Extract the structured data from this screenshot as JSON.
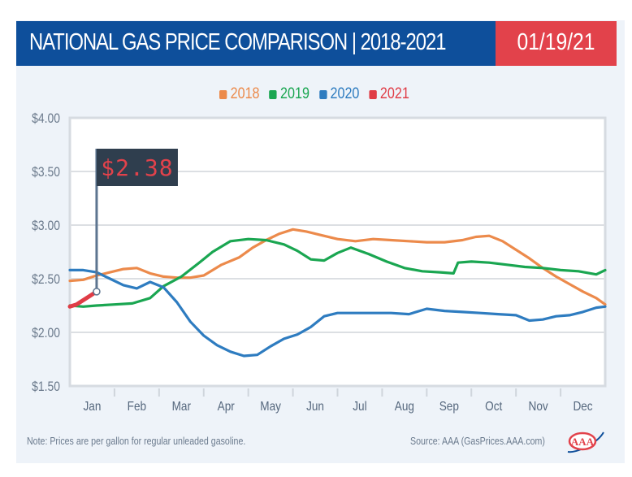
{
  "header": {
    "title": "NATIONAL GAS PRICE COMPARISON | 2018-2021",
    "date": "01/19/21"
  },
  "colors": {
    "header_blue": "#0e4f9b",
    "header_red": "#e2424b",
    "2018": "#ec8a4b",
    "2019": "#1aa651",
    "2020": "#2e7cc0",
    "2021": "#e03c46",
    "callout_bg": "#2f3e4e",
    "callout_text": "#e2424b"
  },
  "footer": {
    "note": "Note: Prices are per gallon for regular unleaded gasoline.",
    "source": "Source: AAA (GasPrices.AAA.com)",
    "logo": "AAA"
  },
  "chart_data": {
    "type": "line",
    "title": "NATIONAL GAS PRICE COMPARISON | 2018-2021",
    "xlabel": "",
    "ylabel": "",
    "x_unit": "month (0 = start of Jan, 12 = end of Dec)",
    "categories": [
      "Jan",
      "Feb",
      "Mar",
      "Apr",
      "May",
      "Jun",
      "Jul",
      "Aug",
      "Sep",
      "Oct",
      "Nov",
      "Dec"
    ],
    "y_ticks": [
      "$4.00",
      "$3.50",
      "$3.00",
      "$2.50",
      "$2.00",
      "$1.50"
    ],
    "y_tick_values": [
      4.0,
      3.5,
      3.0,
      2.5,
      2.0,
      1.5
    ],
    "ylim": [
      1.5,
      4.0
    ],
    "xlim": [
      0,
      12
    ],
    "grid": true,
    "legend": "top-center",
    "callout": {
      "label": "$2.38",
      "x": 0.6,
      "y": 2.38,
      "series": "2021"
    },
    "series": [
      {
        "name": "2018",
        "x": [
          0,
          0.3,
          0.6,
          0.9,
          1.2,
          1.5,
          1.8,
          2.1,
          2.4,
          2.7,
          3.0,
          3.4,
          3.8,
          4.1,
          4.4,
          4.7,
          5.0,
          5.3,
          5.6,
          6.0,
          6.4,
          6.8,
          7.2,
          7.6,
          8.0,
          8.4,
          8.8,
          9.1,
          9.4,
          9.7,
          10.0,
          10.3,
          10.6,
          10.9,
          11.2,
          11.5,
          11.8,
          12.0
        ],
        "y": [
          2.48,
          2.49,
          2.53,
          2.56,
          2.59,
          2.6,
          2.55,
          2.52,
          2.51,
          2.51,
          2.53,
          2.63,
          2.7,
          2.79,
          2.86,
          2.92,
          2.96,
          2.94,
          2.91,
          2.87,
          2.85,
          2.87,
          2.86,
          2.85,
          2.84,
          2.84,
          2.86,
          2.89,
          2.9,
          2.85,
          2.77,
          2.69,
          2.6,
          2.52,
          2.45,
          2.38,
          2.32,
          2.26
        ]
      },
      {
        "name": "2019",
        "x": [
          0,
          0.3,
          0.6,
          1.0,
          1.4,
          1.8,
          2.1,
          2.5,
          2.9,
          3.2,
          3.6,
          4.0,
          4.4,
          4.8,
          5.1,
          5.4,
          5.7,
          6.0,
          6.3,
          6.7,
          7.1,
          7.5,
          7.9,
          8.3,
          8.6,
          8.7,
          9.0,
          9.4,
          9.8,
          10.2,
          10.6,
          11.0,
          11.4,
          11.8,
          12.0
        ],
        "y": [
          2.25,
          2.24,
          2.25,
          2.26,
          2.27,
          2.32,
          2.43,
          2.52,
          2.65,
          2.75,
          2.85,
          2.87,
          2.86,
          2.82,
          2.76,
          2.68,
          2.67,
          2.74,
          2.79,
          2.73,
          2.66,
          2.6,
          2.57,
          2.56,
          2.55,
          2.65,
          2.66,
          2.65,
          2.63,
          2.61,
          2.6,
          2.58,
          2.57,
          2.54,
          2.58
        ]
      },
      {
        "name": "2020",
        "x": [
          0,
          0.3,
          0.6,
          0.9,
          1.2,
          1.5,
          1.8,
          2.1,
          2.4,
          2.7,
          3.0,
          3.3,
          3.6,
          3.9,
          4.2,
          4.5,
          4.8,
          5.1,
          5.4,
          5.7,
          6.0,
          6.4,
          6.8,
          7.2,
          7.6,
          8.0,
          8.4,
          8.8,
          9.2,
          9.6,
          10.0,
          10.3,
          10.6,
          10.9,
          11.2,
          11.5,
          11.8,
          12.0
        ],
        "y": [
          2.58,
          2.58,
          2.56,
          2.5,
          2.44,
          2.41,
          2.47,
          2.42,
          2.28,
          2.1,
          1.97,
          1.88,
          1.82,
          1.78,
          1.79,
          1.87,
          1.94,
          1.98,
          2.05,
          2.15,
          2.18,
          2.18,
          2.18,
          2.18,
          2.17,
          2.22,
          2.2,
          2.19,
          2.18,
          2.17,
          2.16,
          2.11,
          2.12,
          2.15,
          2.16,
          2.19,
          2.23,
          2.24
        ]
      },
      {
        "name": "2021",
        "x": [
          0,
          0.15,
          0.3,
          0.45,
          0.6
        ],
        "y": [
          2.24,
          2.26,
          2.3,
          2.34,
          2.38
        ]
      }
    ]
  }
}
